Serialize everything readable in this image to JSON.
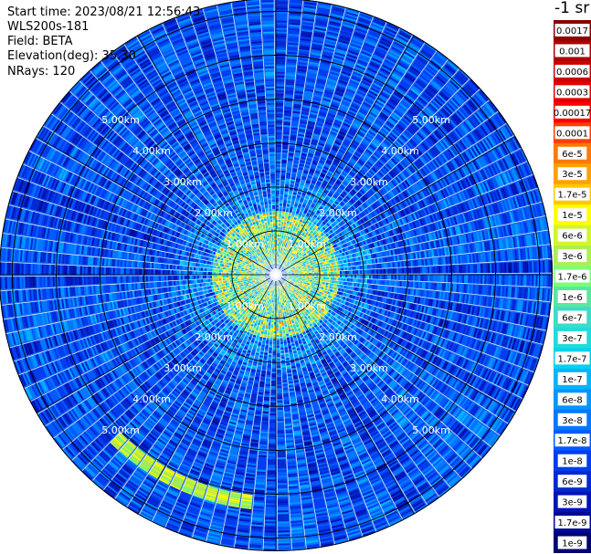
{
  "header": {
    "start_time": "Start time: 2023/08/21 12:56:43",
    "instrument": "WLS200s-181",
    "field": "Field: BETA",
    "elevation": "Elevation(deg): 35.30",
    "nrays": "NRays: 120"
  },
  "chart_data": {
    "type": "heatmap",
    "projection": "polar (PPI scan)",
    "rays": 120,
    "range_rings_km": [
      1,
      2,
      3,
      4,
      5
    ],
    "ring_labels": {
      "1": "1.00km",
      "2": "2.00km",
      "3": "3.00km",
      "4": "4.00km",
      "5": "5.00km"
    },
    "label_bearings_deg": [
      45,
      135,
      225,
      315
    ],
    "max_range_km": 6.3,
    "grid": true,
    "colorbar": {
      "title": "-1 sr",
      "placement": "right",
      "scale": "log",
      "labels": [
        "0.0017",
        "0.001",
        "0.0006",
        "0.0003",
        "0.00017",
        "0.0001",
        "6e-5",
        "3e-5",
        "1.7e-5",
        "1e-5",
        "6e-6",
        "3e-6",
        "1.7e-6",
        "1e-6",
        "6e-7",
        "3e-7",
        "1.7e-7",
        "1e-7",
        "6e-8",
        "3e-8",
        "1.7e-8",
        "1e-8",
        "6e-9",
        "3e-9",
        "1.7e-9",
        "1e-9"
      ],
      "colors": [
        "#8a0000",
        "#b00000",
        "#cc0000",
        "#e00000",
        "#ff0000",
        "#ff3c00",
        "#ff7800",
        "#ffa000",
        "#ffc800",
        "#ffff00",
        "#d2f52a",
        "#aaf050",
        "#78ff78",
        "#5ae6a0",
        "#3cdcc8",
        "#1edcdc",
        "#00d2f0",
        "#00b4ff",
        "#0096ff",
        "#0078ff",
        "#005aff",
        "#003cf0",
        "#0028d2",
        "#0014b4",
        "#000a96",
        "#000070"
      ]
    }
  }
}
